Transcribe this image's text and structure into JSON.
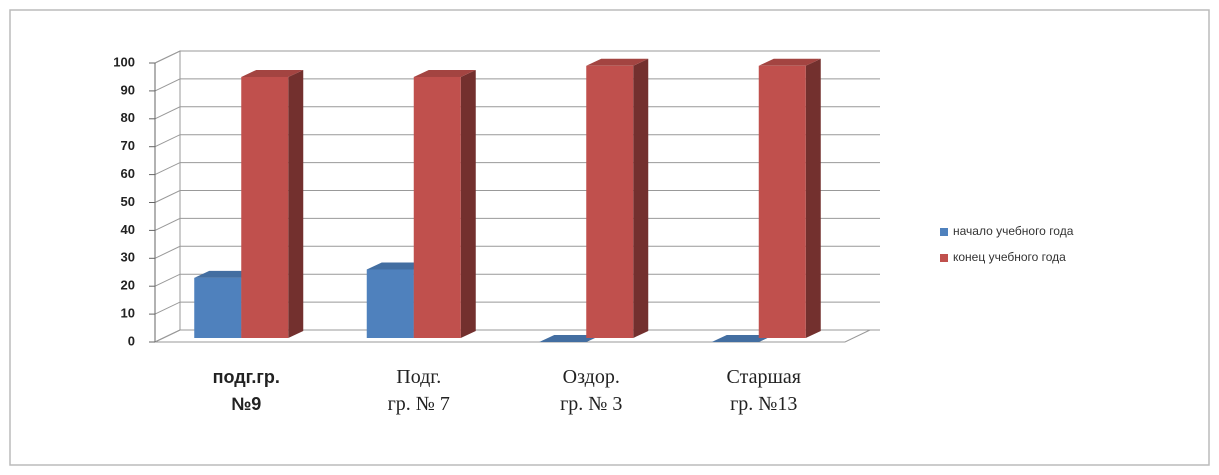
{
  "chart_data": {
    "type": "bar3d",
    "categories": [
      "подг.гр.\n№9",
      "Подг.\nгр. № 7",
      "Оздор.\nгр. № 3",
      "Старшая\nгр. №13"
    ],
    "series": [
      {
        "name": "начало учебного года",
        "color": "#4f81bd",
        "values": [
          23,
          26,
          0,
          0
        ]
      },
      {
        "name": "конец учебного года",
        "color": "#c0504d",
        "values": [
          95,
          95,
          99,
          99
        ]
      }
    ],
    "ylim": [
      0,
      100
    ],
    "yticks": [
      0,
      10,
      20,
      30,
      40,
      50,
      60,
      70,
      80,
      90,
      100
    ],
    "grid": true,
    "legend": "right"
  }
}
